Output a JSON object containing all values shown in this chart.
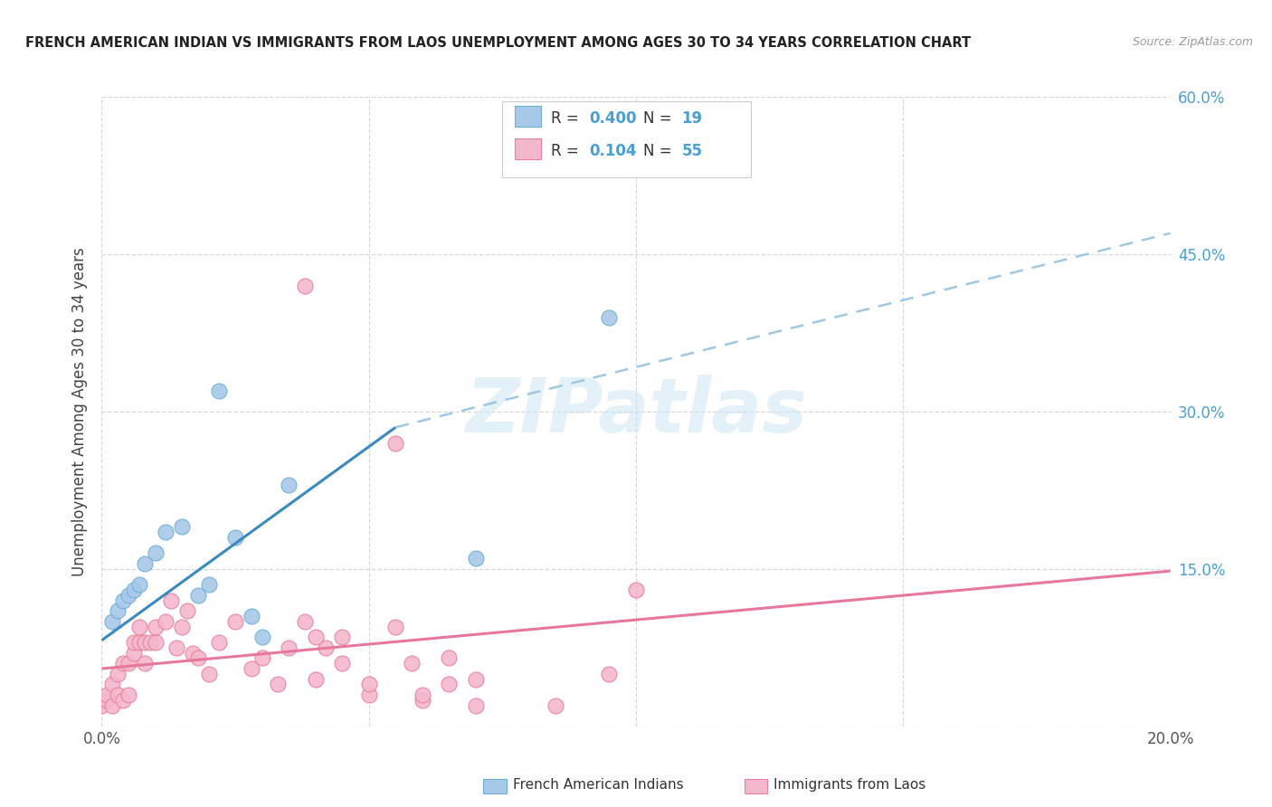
{
  "title": "FRENCH AMERICAN INDIAN VS IMMIGRANTS FROM LAOS UNEMPLOYMENT AMONG AGES 30 TO 34 YEARS CORRELATION CHART",
  "source": "Source: ZipAtlas.com",
  "ylabel": "Unemployment Among Ages 30 to 34 years",
  "legend_r1": "R = 0.400",
  "legend_n1": "N = 19",
  "legend_r2": "R =  0.104",
  "legend_n2": "N = 55",
  "blue_color": "#a8c8e8",
  "blue_edge_color": "#6aaed6",
  "pink_color": "#f4b8cc",
  "pink_edge_color": "#e8809a",
  "trend_blue": "#3a8abf",
  "trend_pink": "#e8789a",
  "trend_dashed": "#a0c8e0",
  "background": "#ffffff",
  "grid_color": "#d8d8d8",
  "blue_scatter_x": [
    0.002,
    0.003,
    0.004,
    0.005,
    0.006,
    0.007,
    0.008,
    0.01,
    0.012,
    0.015,
    0.018,
    0.02,
    0.022,
    0.025,
    0.028,
    0.03,
    0.035,
    0.07,
    0.095
  ],
  "blue_scatter_y": [
    0.1,
    0.11,
    0.12,
    0.125,
    0.13,
    0.135,
    0.155,
    0.165,
    0.185,
    0.19,
    0.125,
    0.135,
    0.32,
    0.18,
    0.105,
    0.085,
    0.23,
    0.16,
    0.39
  ],
  "pink_scatter_x": [
    0.0,
    0.001,
    0.001,
    0.002,
    0.002,
    0.003,
    0.003,
    0.004,
    0.004,
    0.005,
    0.005,
    0.006,
    0.006,
    0.007,
    0.007,
    0.008,
    0.008,
    0.009,
    0.01,
    0.01,
    0.012,
    0.013,
    0.014,
    0.015,
    0.016,
    0.017,
    0.018,
    0.02,
    0.022,
    0.025,
    0.028,
    0.03,
    0.033,
    0.035,
    0.038,
    0.04,
    0.042,
    0.045,
    0.05,
    0.055,
    0.058,
    0.06,
    0.065,
    0.07,
    0.085,
    0.095,
    0.1,
    0.038,
    0.055,
    0.06,
    0.04,
    0.045,
    0.05,
    0.065,
    0.07
  ],
  "pink_scatter_y": [
    0.02,
    0.025,
    0.03,
    0.02,
    0.04,
    0.03,
    0.05,
    0.025,
    0.06,
    0.03,
    0.06,
    0.07,
    0.08,
    0.08,
    0.095,
    0.08,
    0.06,
    0.08,
    0.08,
    0.095,
    0.1,
    0.12,
    0.075,
    0.095,
    0.11,
    0.07,
    0.065,
    0.05,
    0.08,
    0.1,
    0.055,
    0.065,
    0.04,
    0.075,
    0.1,
    0.045,
    0.075,
    0.085,
    0.03,
    0.095,
    0.06,
    0.025,
    0.04,
    0.045,
    0.02,
    0.05,
    0.13,
    0.42,
    0.27,
    0.03,
    0.085,
    0.06,
    0.04,
    0.065,
    0.02
  ],
  "xlim": [
    0.0,
    0.2
  ],
  "ylim": [
    0.0,
    0.6
  ],
  "xticks": [
    0.0,
    0.05,
    0.1,
    0.15,
    0.2
  ],
  "xtick_labels": [
    "0.0%",
    "",
    "",
    "",
    "20.0%"
  ],
  "yticks_right": [
    0.0,
    0.15,
    0.3,
    0.45,
    0.6
  ],
  "ytick_labels_right": [
    "",
    "15.0%",
    "30.0%",
    "45.0%",
    "60.0%"
  ],
  "blue_trend_x": [
    0.0,
    0.055
  ],
  "blue_trend_y": [
    0.082,
    0.285
  ],
  "dashed_trend_x": [
    0.055,
    0.2
  ],
  "dashed_trend_y": [
    0.285,
    0.47
  ],
  "pink_trend_x": [
    0.0,
    0.2
  ],
  "pink_trend_y": [
    0.055,
    0.148
  ],
  "watermark_text": "ZIPatlas",
  "bottom_legend_blue": "French American Indians",
  "bottom_legend_pink": "Immigrants from Laos"
}
